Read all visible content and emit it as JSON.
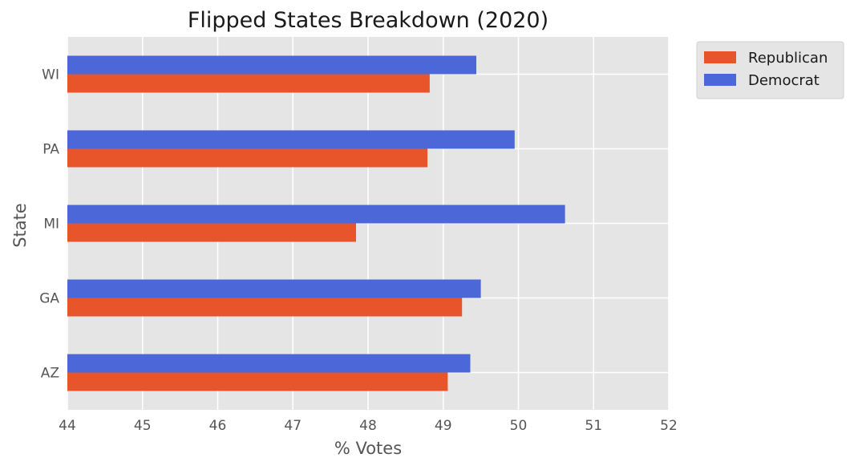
{
  "chart_data": {
    "type": "bar",
    "orientation": "horizontal",
    "title": "Flipped States Breakdown (2020)",
    "xlabel": "% Votes",
    "ylabel": "State",
    "categories": [
      "AZ",
      "GA",
      "MI",
      "PA",
      "WI"
    ],
    "series": [
      {
        "name": "Republican",
        "color": "#e8552a",
        "values": [
          49.06,
          49.25,
          47.84,
          48.79,
          48.82
        ]
      },
      {
        "name": "Democrat",
        "color": "#4c68d8",
        "values": [
          49.36,
          49.5,
          50.62,
          49.95,
          49.44
        ]
      }
    ],
    "xlim": [
      44,
      52
    ],
    "xticks": [
      "44",
      "45",
      "46",
      "47",
      "48",
      "49",
      "50",
      "51",
      "52"
    ],
    "grid": true,
    "legend_position": "outside-top-right"
  }
}
